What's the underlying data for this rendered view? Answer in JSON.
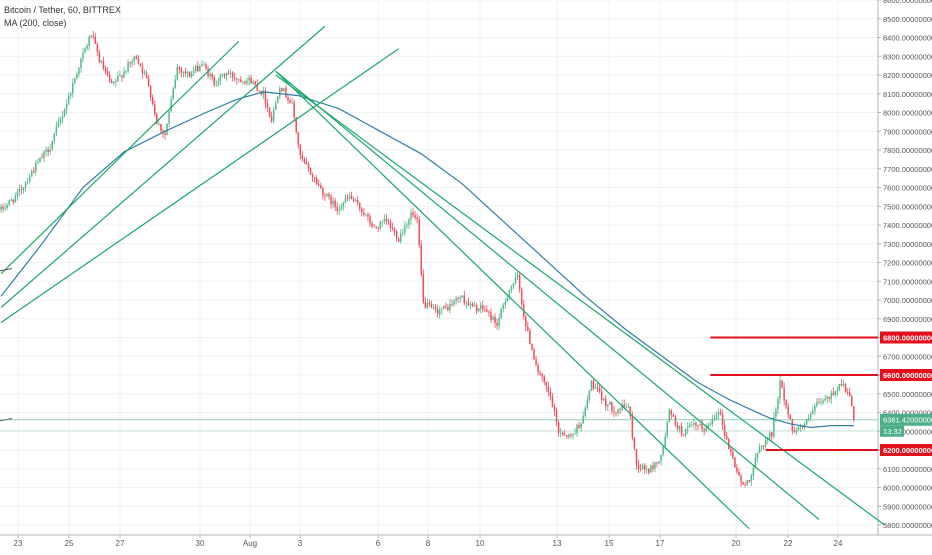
{
  "header": {
    "symbol_line": "Bitcoin / Tether, 60, BITTREX",
    "indicator_line": "MA (200, close)"
  },
  "colors": {
    "up": "#53b987",
    "down": "#eb4d5c",
    "ma": "#2f7fa0",
    "trendline": "#1aa66b",
    "level": "#e0101d",
    "price_line": "#4caf88",
    "grid": "#eef1f4",
    "axis_text": "#555555"
  },
  "chart_data": {
    "type": "candlestick",
    "title": "Bitcoin / Tether, 60, BITTREX",
    "ylim": [
      5760,
      8640
    ],
    "y_ticks": [
      "8600.00000000",
      "8500.00000000",
      "8400.00000000",
      "8300.00000000",
      "8200.00000000",
      "8100.00000000",
      "8000.00000000",
      "7900.00000000",
      "7800.00000000",
      "7700.00000000",
      "7600.00000000",
      "7500.00000000",
      "7400.00000000",
      "7300.00000000",
      "7200.00000000",
      "7100.00000000",
      "7000.00000000",
      "6900.00000000",
      "6800.00000000",
      "6700.00000000",
      "6600.00000000",
      "6500.00000000",
      "6400.00000000",
      "6300.00000000",
      "6200.00000000",
      "6100.00000000",
      "6000.00000000",
      "5900.00000000",
      "5800.00000000"
    ],
    "x_ticks": [
      "23",
      "25",
      "27",
      "30",
      "Aug",
      "3",
      "6",
      "8",
      "10",
      "13",
      "15",
      "17",
      "20",
      "22",
      "24"
    ],
    "anchors": [
      {
        "t": 0,
        "p": 7480
      },
      {
        "t": 8,
        "p": 7560
      },
      {
        "t": 16,
        "p": 7700
      },
      {
        "t": 24,
        "p": 7820
      },
      {
        "t": 32,
        "p": 8050
      },
      {
        "t": 38,
        "p": 8250
      },
      {
        "t": 44,
        "p": 8420
      },
      {
        "t": 48,
        "p": 8280
      },
      {
        "t": 54,
        "p": 8140
      },
      {
        "t": 60,
        "p": 8220
      },
      {
        "t": 66,
        "p": 8300
      },
      {
        "t": 72,
        "p": 8150
      },
      {
        "t": 76,
        "p": 7950
      },
      {
        "t": 80,
        "p": 7880
      },
      {
        "t": 86,
        "p": 8240
      },
      {
        "t": 92,
        "p": 8200
      },
      {
        "t": 98,
        "p": 8260
      },
      {
        "t": 104,
        "p": 8160
      },
      {
        "t": 110,
        "p": 8210
      },
      {
        "t": 116,
        "p": 8180
      },
      {
        "t": 122,
        "p": 8170
      },
      {
        "t": 128,
        "p": 8100
      },
      {
        "t": 132,
        "p": 7960
      },
      {
        "t": 136,
        "p": 8150
      },
      {
        "t": 142,
        "p": 8040
      },
      {
        "t": 146,
        "p": 7760
      },
      {
        "t": 152,
        "p": 7660
      },
      {
        "t": 158,
        "p": 7560
      },
      {
        "t": 164,
        "p": 7490
      },
      {
        "t": 170,
        "p": 7550
      },
      {
        "t": 176,
        "p": 7480
      },
      {
        "t": 182,
        "p": 7380
      },
      {
        "t": 188,
        "p": 7420
      },
      {
        "t": 194,
        "p": 7330
      },
      {
        "t": 200,
        "p": 7460
      },
      {
        "t": 203,
        "p": 7420
      },
      {
        "t": 206,
        "p": 6980
      },
      {
        "t": 212,
        "p": 6940
      },
      {
        "t": 218,
        "p": 6960
      },
      {
        "t": 224,
        "p": 7020
      },
      {
        "t": 230,
        "p": 6960
      },
      {
        "t": 236,
        "p": 6950
      },
      {
        "t": 242,
        "p": 6870
      },
      {
        "t": 248,
        "p": 7060
      },
      {
        "t": 252,
        "p": 7120
      },
      {
        "t": 256,
        "p": 6860
      },
      {
        "t": 262,
        "p": 6620
      },
      {
        "t": 268,
        "p": 6480
      },
      {
        "t": 272,
        "p": 6300
      },
      {
        "t": 278,
        "p": 6270
      },
      {
        "t": 284,
        "p": 6370
      },
      {
        "t": 288,
        "p": 6560
      },
      {
        "t": 294,
        "p": 6460
      },
      {
        "t": 300,
        "p": 6410
      },
      {
        "t": 306,
        "p": 6440
      },
      {
        "t": 310,
        "p": 6120
      },
      {
        "t": 316,
        "p": 6090
      },
      {
        "t": 322,
        "p": 6160
      },
      {
        "t": 326,
        "p": 6400
      },
      {
        "t": 332,
        "p": 6290
      },
      {
        "t": 338,
        "p": 6330
      },
      {
        "t": 344,
        "p": 6310
      },
      {
        "t": 350,
        "p": 6420
      },
      {
        "t": 354,
        "p": 6250
      },
      {
        "t": 358,
        "p": 6120
      },
      {
        "t": 362,
        "p": 6000
      },
      {
        "t": 366,
        "p": 6070
      },
      {
        "t": 370,
        "p": 6210
      },
      {
        "t": 376,
        "p": 6290
      },
      {
        "t": 380,
        "p": 6560
      },
      {
        "t": 386,
        "p": 6310
      },
      {
        "t": 392,
        "p": 6330
      },
      {
        "t": 398,
        "p": 6440
      },
      {
        "t": 404,
        "p": 6480
      },
      {
        "t": 410,
        "p": 6560
      },
      {
        "t": 414,
        "p": 6480
      },
      {
        "t": 416,
        "p": 6360
      }
    ],
    "moving_average": {
      "name": "MA (200, close)",
      "points": [
        {
          "t": 0,
          "p": 7020
        },
        {
          "t": 20,
          "p": 7300
        },
        {
          "t": 40,
          "p": 7600
        },
        {
          "t": 60,
          "p": 7790
        },
        {
          "t": 80,
          "p": 7900
        },
        {
          "t": 100,
          "p": 8000
        },
        {
          "t": 115,
          "p": 8070
        },
        {
          "t": 128,
          "p": 8110
        },
        {
          "t": 145,
          "p": 8090
        },
        {
          "t": 165,
          "p": 8020
        },
        {
          "t": 185,
          "p": 7900
        },
        {
          "t": 205,
          "p": 7780
        },
        {
          "t": 225,
          "p": 7620
        },
        {
          "t": 245,
          "p": 7420
        },
        {
          "t": 265,
          "p": 7220
        },
        {
          "t": 285,
          "p": 7020
        },
        {
          "t": 305,
          "p": 6840
        },
        {
          "t": 325,
          "p": 6680
        },
        {
          "t": 340,
          "p": 6560
        },
        {
          "t": 355,
          "p": 6470
        },
        {
          "t": 365,
          "p": 6420
        },
        {
          "t": 375,
          "p": 6370
        },
        {
          "t": 385,
          "p": 6340
        },
        {
          "t": 395,
          "p": 6320
        },
        {
          "t": 405,
          "p": 6330
        },
        {
          "t": 416,
          "p": 6330
        }
      ]
    },
    "trendlines": [
      {
        "t1": 0,
        "p1": 7140,
        "t2": 116,
        "p2": 8380
      },
      {
        "t1": 0,
        "p1": 6960,
        "t2": 158,
        "p2": 8460
      },
      {
        "t1": 0,
        "p1": 6880,
        "t2": 194,
        "p2": 8340
      },
      {
        "t1": 134,
        "p1": 8220,
        "t2": 365,
        "p2": 5780
      },
      {
        "t1": 134,
        "p1": 8220,
        "t2": 399,
        "p2": 5830
      },
      {
        "t1": 134,
        "p1": 8200,
        "t2": 431,
        "p2": 5800
      }
    ],
    "horizontal_levels": [
      {
        "price": 6800,
        "label": "6800.00000000",
        "t_start": 346
      },
      {
        "price": 6600,
        "label": "6600.00000000",
        "t_start": 346
      },
      {
        "price": 6200,
        "label": "6200.00000000",
        "t_start": 373
      }
    ],
    "current_price": {
      "price": 6361.42,
      "label": "6361.42000000",
      "timer": "13:32"
    },
    "left_stub_lines": [
      {
        "p1": 7155,
        "p2": 7168
      },
      {
        "p1": 6355,
        "p2": 6368
      }
    ]
  }
}
